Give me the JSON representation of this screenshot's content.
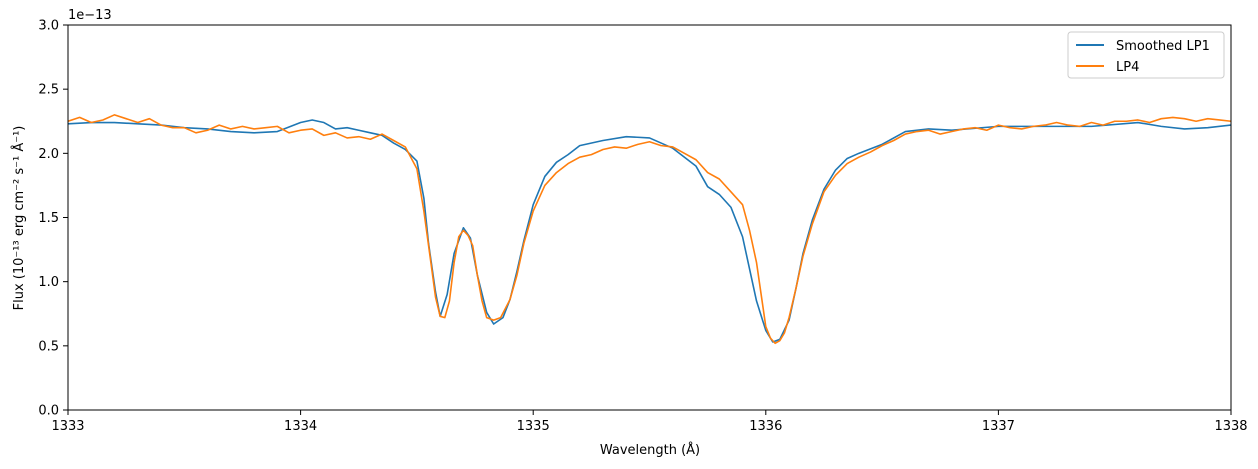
{
  "chart_data": {
    "type": "line",
    "title": "",
    "xlabel": "Wavelength (Å)",
    "ylabel": "Flux (10⁻¹³ erg cm⁻² s⁻¹ Å⁻¹)",
    "y_offset_label": "1e−13",
    "xlim": [
      1333,
      1338
    ],
    "ylim": [
      0,
      3.0
    ],
    "x_ticks": [
      1333,
      1334,
      1335,
      1336,
      1337,
      1338
    ],
    "x_tick_labels": [
      "1333",
      "1334",
      "1335",
      "1336",
      "1337",
      "1338"
    ],
    "y_ticks": [
      0,
      0.5,
      1.0,
      1.5,
      2.0,
      2.5,
      3.0
    ],
    "y_tick_labels": [
      "0.0",
      "0.5",
      "1.0",
      "1.5",
      "2.0",
      "2.5",
      "3.0"
    ],
    "grid": false,
    "legend_position": "top-right",
    "series": [
      {
        "name": "Smoothed LP1",
        "color": "#1f77b4",
        "x": [
          1333.0,
          1333.1,
          1333.2,
          1333.3,
          1333.4,
          1333.5,
          1333.6,
          1333.7,
          1333.8,
          1333.9,
          1334.0,
          1334.05,
          1334.1,
          1334.15,
          1334.2,
          1334.25,
          1334.3,
          1334.35,
          1334.4,
          1334.45,
          1334.5,
          1334.53,
          1334.55,
          1334.58,
          1334.6,
          1334.63,
          1334.66,
          1334.7,
          1334.73,
          1334.76,
          1334.8,
          1334.83,
          1334.87,
          1334.9,
          1334.93,
          1334.96,
          1335.0,
          1335.05,
          1335.1,
          1335.15,
          1335.2,
          1335.3,
          1335.4,
          1335.5,
          1335.6,
          1335.7,
          1335.75,
          1335.8,
          1335.85,
          1335.9,
          1335.93,
          1335.96,
          1336.0,
          1336.03,
          1336.06,
          1336.1,
          1336.13,
          1336.16,
          1336.2,
          1336.25,
          1336.3,
          1336.35,
          1336.4,
          1336.5,
          1336.6,
          1336.7,
          1336.8,
          1337.0,
          1337.2,
          1337.4,
          1337.6,
          1337.7,
          1337.8,
          1337.9,
          1338.0
        ],
        "y": [
          2.23,
          2.24,
          2.24,
          2.23,
          2.22,
          2.2,
          2.19,
          2.17,
          2.16,
          2.17,
          2.24,
          2.26,
          2.24,
          2.19,
          2.2,
          2.18,
          2.16,
          2.14,
          2.08,
          2.03,
          1.94,
          1.65,
          1.3,
          0.92,
          0.73,
          0.9,
          1.22,
          1.42,
          1.34,
          1.05,
          0.76,
          0.67,
          0.72,
          0.86,
          1.08,
          1.32,
          1.6,
          1.82,
          1.93,
          1.99,
          2.06,
          2.1,
          2.13,
          2.12,
          2.04,
          1.9,
          1.74,
          1.68,
          1.58,
          1.35,
          1.1,
          0.85,
          0.62,
          0.53,
          0.55,
          0.7,
          0.95,
          1.22,
          1.48,
          1.72,
          1.87,
          1.96,
          2.0,
          2.07,
          2.17,
          2.19,
          2.18,
          2.21,
          2.21,
          2.21,
          2.24,
          2.21,
          2.19,
          2.2,
          2.22
        ]
      },
      {
        "name": "LP4",
        "color": "#ff7f0e",
        "x": [
          1333.0,
          1333.05,
          1333.1,
          1333.15,
          1333.2,
          1333.25,
          1333.3,
          1333.35,
          1333.4,
          1333.45,
          1333.5,
          1333.55,
          1333.6,
          1333.65,
          1333.7,
          1333.75,
          1333.8,
          1333.85,
          1333.9,
          1333.95,
          1334.0,
          1334.05,
          1334.1,
          1334.15,
          1334.2,
          1334.25,
          1334.3,
          1334.35,
          1334.4,
          1334.45,
          1334.5,
          1334.53,
          1334.56,
          1334.58,
          1334.6,
          1334.62,
          1334.64,
          1334.66,
          1334.68,
          1334.7,
          1334.72,
          1334.74,
          1334.76,
          1334.78,
          1334.8,
          1334.83,
          1334.86,
          1334.9,
          1334.93,
          1334.96,
          1335.0,
          1335.05,
          1335.1,
          1335.15,
          1335.2,
          1335.25,
          1335.3,
          1335.35,
          1335.4,
          1335.45,
          1335.5,
          1335.55,
          1335.6,
          1335.65,
          1335.7,
          1335.75,
          1335.8,
          1335.85,
          1335.9,
          1335.93,
          1335.96,
          1335.98,
          1336.0,
          1336.02,
          1336.04,
          1336.06,
          1336.08,
          1336.1,
          1336.13,
          1336.16,
          1336.2,
          1336.25,
          1336.3,
          1336.35,
          1336.4,
          1336.45,
          1336.5,
          1336.55,
          1336.6,
          1336.65,
          1336.7,
          1336.75,
          1336.8,
          1336.85,
          1336.9,
          1336.95,
          1337.0,
          1337.05,
          1337.1,
          1337.15,
          1337.2,
          1337.25,
          1337.3,
          1337.35,
          1337.4,
          1337.45,
          1337.5,
          1337.55,
          1337.6,
          1337.65,
          1337.7,
          1337.75,
          1337.8,
          1337.85,
          1337.9,
          1337.95,
          1338.0
        ],
        "y": [
          2.25,
          2.28,
          2.24,
          2.26,
          2.3,
          2.27,
          2.24,
          2.27,
          2.22,
          2.2,
          2.2,
          2.16,
          2.18,
          2.22,
          2.19,
          2.21,
          2.19,
          2.2,
          2.21,
          2.16,
          2.18,
          2.19,
          2.14,
          2.16,
          2.12,
          2.13,
          2.11,
          2.15,
          2.1,
          2.05,
          1.88,
          1.55,
          1.15,
          0.88,
          0.73,
          0.72,
          0.85,
          1.15,
          1.35,
          1.4,
          1.36,
          1.28,
          1.05,
          0.85,
          0.72,
          0.7,
          0.72,
          0.86,
          1.05,
          1.3,
          1.55,
          1.75,
          1.85,
          1.92,
          1.97,
          1.99,
          2.03,
          2.05,
          2.04,
          2.07,
          2.09,
          2.06,
          2.05,
          2.0,
          1.95,
          1.85,
          1.8,
          1.7,
          1.6,
          1.4,
          1.15,
          0.9,
          0.65,
          0.56,
          0.52,
          0.54,
          0.6,
          0.72,
          0.95,
          1.2,
          1.45,
          1.7,
          1.83,
          1.92,
          1.97,
          2.01,
          2.06,
          2.1,
          2.15,
          2.17,
          2.18,
          2.15,
          2.17,
          2.19,
          2.2,
          2.18,
          2.22,
          2.2,
          2.19,
          2.21,
          2.22,
          2.24,
          2.22,
          2.21,
          2.24,
          2.22,
          2.25,
          2.25,
          2.26,
          2.24,
          2.27,
          2.28,
          2.27,
          2.25,
          2.27,
          2.26,
          2.25
        ]
      }
    ]
  }
}
